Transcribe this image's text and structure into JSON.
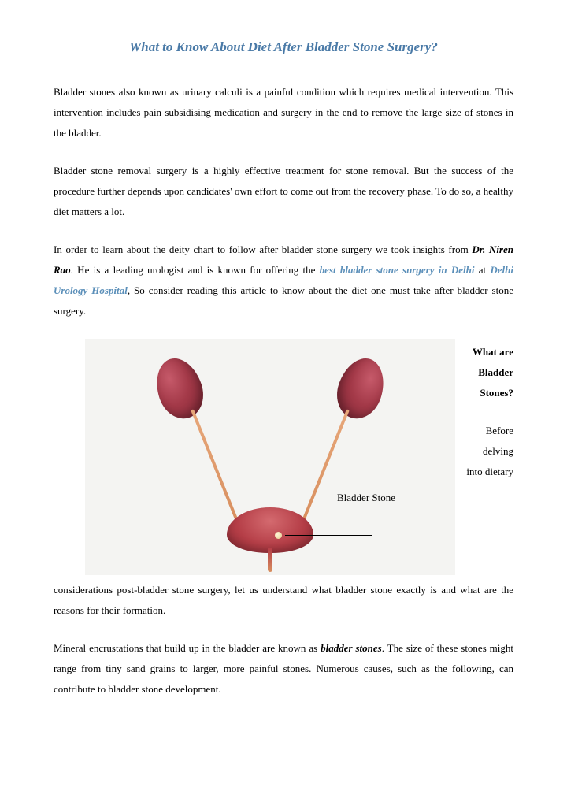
{
  "colors": {
    "title": "#4a7aa7",
    "link": "#5b8fb9",
    "text": "#000000",
    "figure_bg": "#f4f4f2",
    "kidney_light": "#c65a6a",
    "kidney_dark": "#7a2432",
    "bladder_light": "#d46a6f",
    "bladder_dark": "#8e2a34",
    "ureter": "#d88f5f",
    "stone": "#e6cf8f"
  },
  "title": "What to Know About Diet After Bladder Stone Surgery?",
  "p1": "Bladder stones also known as urinary calculi is a painful condition which requires medical intervention. This intervention includes pain subsidising medication and surgery in the end to remove the large size of stones in the bladder.",
  "p2": "Bladder stone removal surgery is a highly effective treatment for stone removal. But the success of the procedure further depends upon candidates' own effort to come out from the recovery phase. To do so, a healthy diet matters a lot.",
  "p3_a": "In order to learn about the deity chart to follow after bladder stone surgery we took insights from ",
  "p3_doctor": "Dr. Niren Rao",
  "p3_b": ". He is a leading urologist and is known for offering the ",
  "p3_link1": "best bladder stone surgery in Delhi",
  "p3_c": " at ",
  "p3_link2": "Delhi Urology Hospital",
  "p3_d": ", So consider reading this article to know about the diet one must take after bladder stone surgery.",
  "aside_heading": "What are Bladder Stones?",
  "aside_sub": "Before delving into dietary",
  "figure_label": "Bladder Stone",
  "p4": "considerations post-bladder stone surgery, let us understand what bladder stone exactly is and what are the reasons for their formation.",
  "p5_a": "Mineral encrustations that build up in the bladder are known as ",
  "p5_bold": "bladder stones",
  "p5_b": ". The size of these stones might range from tiny sand grains to larger, more painful stones. Numerous causes, such as the following, can contribute to bladder stone development."
}
